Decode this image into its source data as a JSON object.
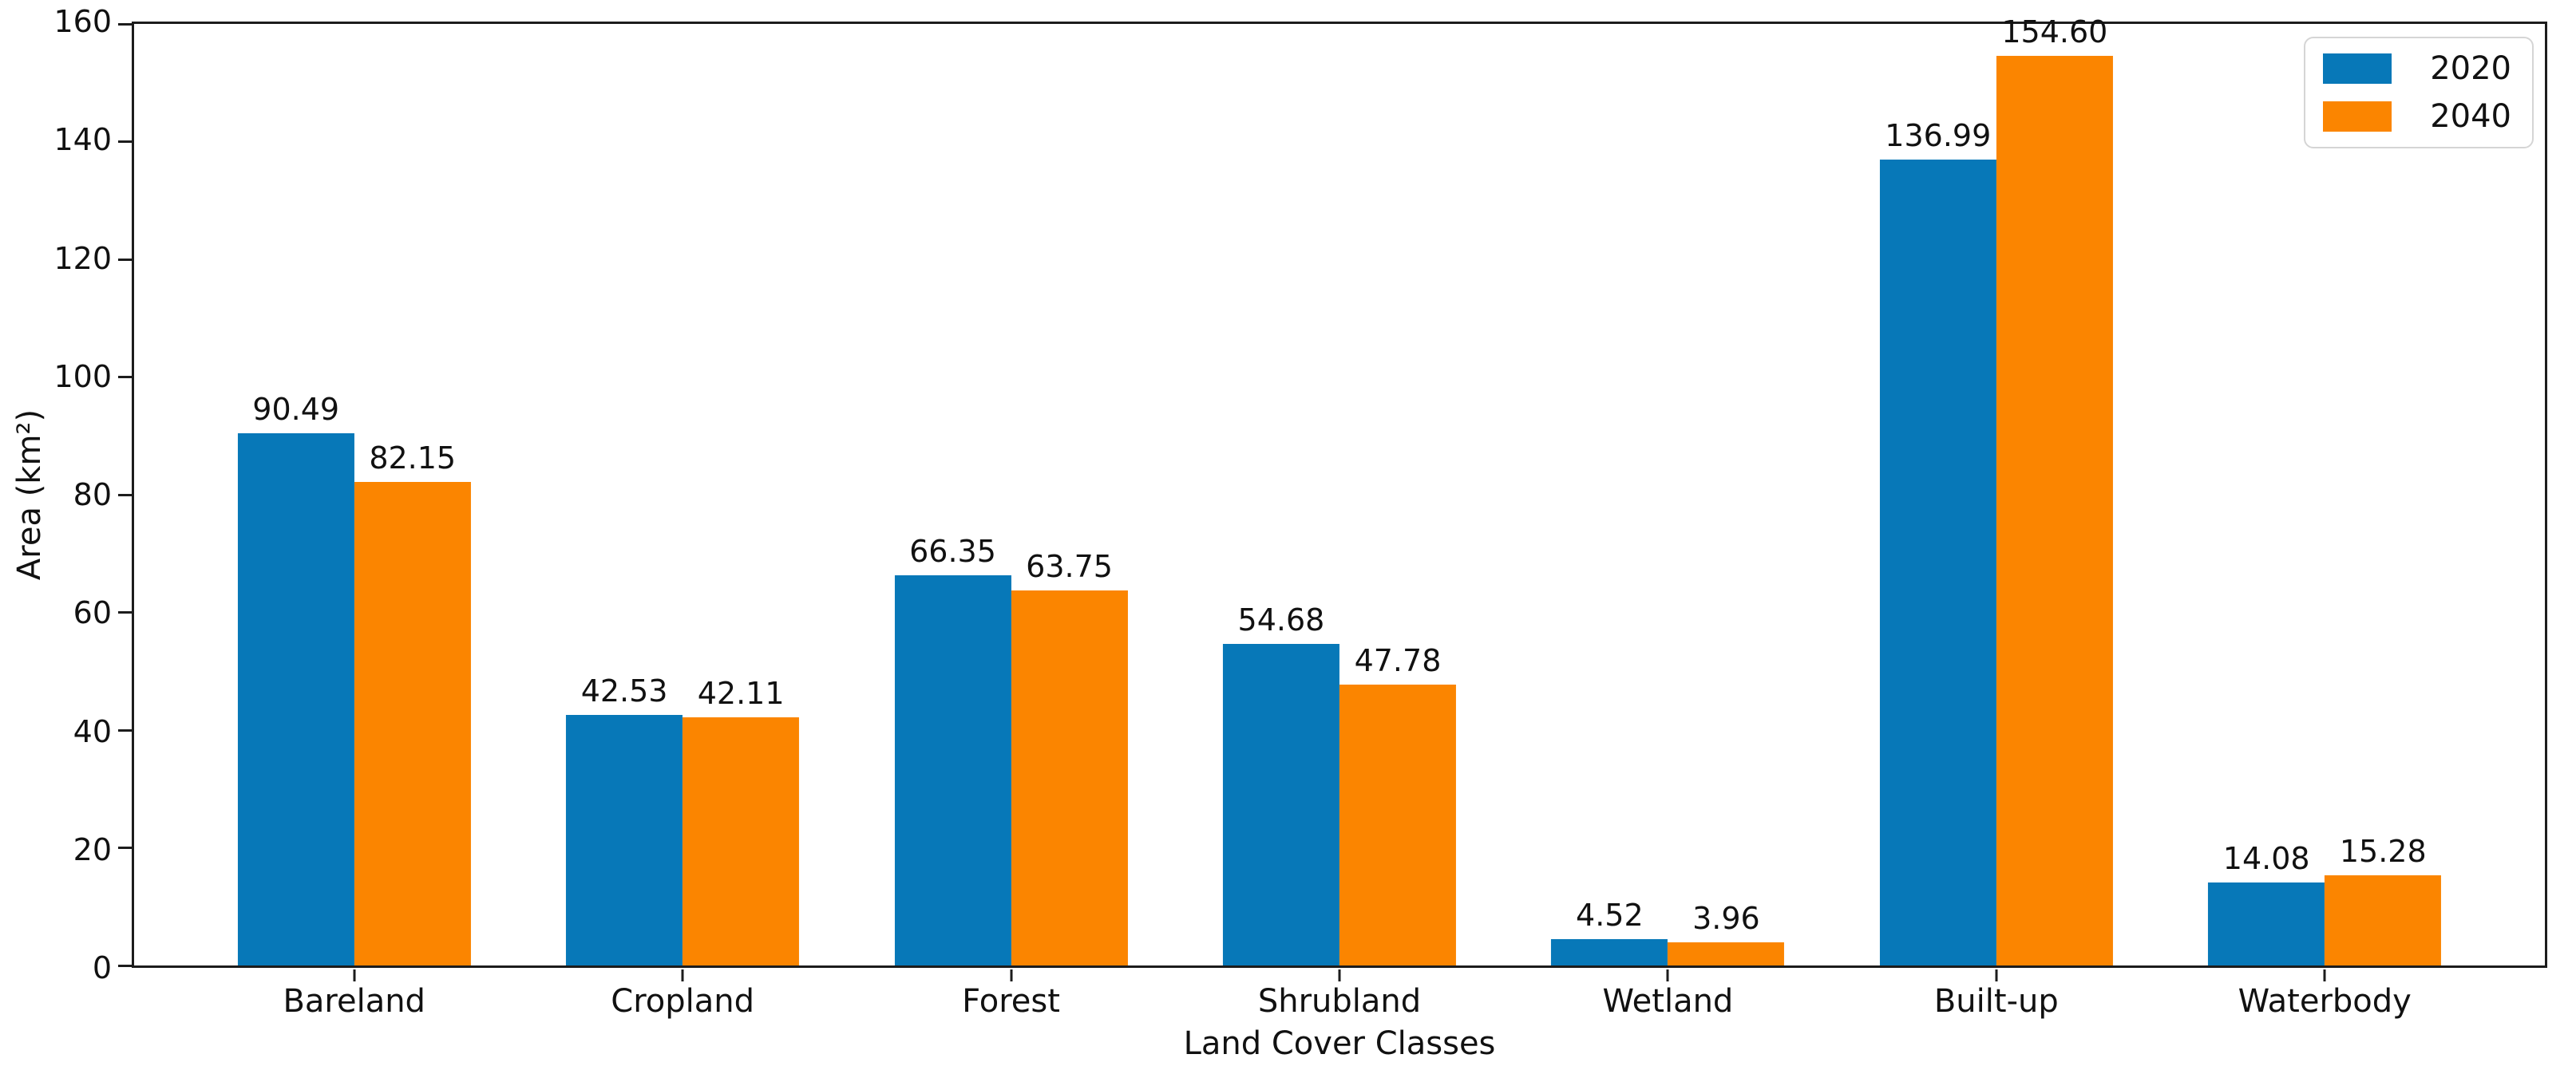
{
  "figure": {
    "background": "#ffffff",
    "frame_color": "#1c1c1c"
  },
  "chart_data": {
    "type": "bar",
    "title": "",
    "xlabel": "Land Cover Classes",
    "ylabel": "Area (km²)",
    "categories": [
      "Bareland",
      "Cropland",
      "Forest",
      "Shrubland",
      "Wetland",
      "Built-up",
      "Waterbody"
    ],
    "series": [
      {
        "name": "2020",
        "color": "#0778b8",
        "values": [
          90.49,
          42.53,
          66.35,
          54.68,
          4.52,
          136.99,
          14.08
        ],
        "labels": [
          "90.49",
          "42.53",
          "66.35",
          "54.68",
          "4.52",
          "136.99",
          "14.08"
        ]
      },
      {
        "name": "2040",
        "color": "#fb8500",
        "values": [
          82.15,
          42.11,
          63.75,
          47.78,
          3.96,
          154.6,
          15.28
        ],
        "labels": [
          "82.15",
          "42.11",
          "63.75",
          "47.78",
          "3.96",
          "154.60",
          "15.28"
        ]
      }
    ],
    "ylim": [
      0,
      160
    ],
    "yticks": [
      "0",
      "20",
      "40",
      "60",
      "80",
      "100",
      "120",
      "140",
      "160"
    ],
    "grid": false,
    "legend_position": "upper right"
  }
}
